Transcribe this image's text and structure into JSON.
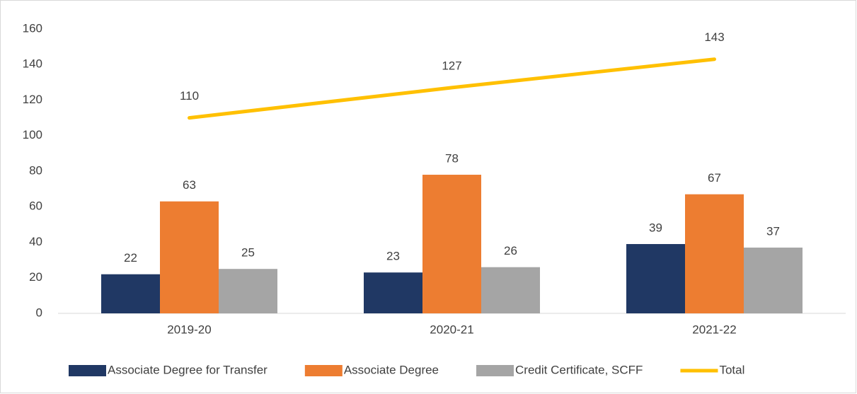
{
  "chart_data": {
    "type": "bar",
    "categories": [
      "2019-20",
      "2020-21",
      "2021-22"
    ],
    "series": [
      {
        "name": "Associate Degree for Transfer",
        "color": "#203864",
        "values": [
          22,
          23,
          39
        ]
      },
      {
        "name": "Associate Degree",
        "color": "#ed7d31",
        "values": [
          63,
          78,
          67
        ]
      },
      {
        "name": "Credit Certificate, SCFF",
        "color": "#a5a5a5",
        "values": [
          25,
          26,
          37
        ]
      },
      {
        "name": "Total",
        "color": "#ffc000",
        "type": "line",
        "values": [
          110,
          127,
          143
        ]
      }
    ],
    "ylim": [
      0,
      160
    ],
    "yticks": [
      0,
      20,
      40,
      60,
      80,
      100,
      120,
      140,
      160
    ],
    "grid": false,
    "legend": "bottom"
  }
}
